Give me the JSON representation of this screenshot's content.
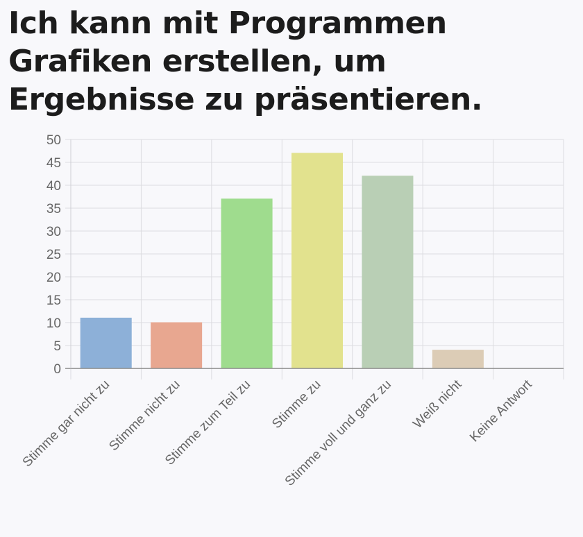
{
  "chart_data": {
    "type": "bar",
    "title": "Ich kann mit Programmen Grafiken erstellen, um Ergebnisse zu präsentieren.",
    "xlabel": "",
    "ylabel": "",
    "ylim": [
      0,
      50
    ],
    "yticks": [
      0,
      5,
      10,
      15,
      20,
      25,
      30,
      35,
      40,
      45,
      50
    ],
    "grid": true,
    "legend": "none",
    "categories": [
      "Stimme gar nicht zu",
      "Stimme nicht zu",
      "Stimme zum Teil zu",
      "Stimme zu",
      "Stimme voll und ganz zu",
      "Weiß nicht",
      "Keine Antwort"
    ],
    "values": [
      11,
      10,
      37,
      47,
      42,
      4,
      0
    ],
    "colors": [
      "#8db0d8",
      "#e8a790",
      "#9fdc8e",
      "#e2e28e",
      "#b9cfb5",
      "#dcccb6",
      "#cccccc"
    ]
  }
}
